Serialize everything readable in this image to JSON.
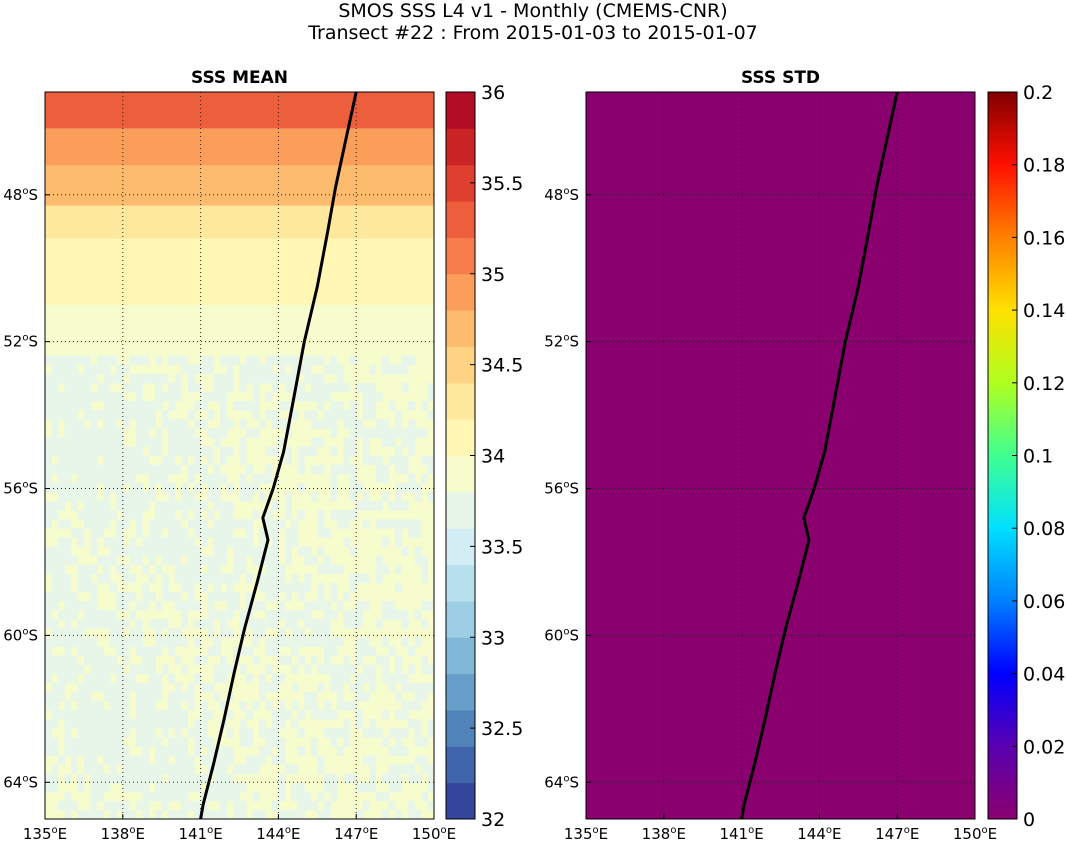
{
  "figure": {
    "title_line1": "SMOS SSS L4 v1 - Monthly (CMEMS-CNR)",
    "title_line2": "Transect #22 : From 2015-01-03 to 2015-01-07"
  },
  "chart_data": [
    {
      "type": "heatmap",
      "title": "SSS MEAN",
      "x_tick_labels": [
        "135°E",
        "138°E",
        "141°E",
        "144°E",
        "147°E",
        "150°E"
      ],
      "x_ticks_deg": [
        135,
        138,
        141,
        144,
        147,
        150
      ],
      "y_tick_labels": [
        "48°S",
        "52°S",
        "56°S",
        "60°S",
        "64°S"
      ],
      "y_ticks_deg": [
        -48,
        -52,
        -56,
        -60,
        -64
      ],
      "xlim": [
        135,
        150
      ],
      "ylim": [
        -65,
        -45.2
      ],
      "grid": true,
      "colorbar": {
        "colormap": "RdYlBu_r",
        "range": [
          32,
          36
        ],
        "levels": 20,
        "tick_values": [
          32,
          32.5,
          33,
          33.5,
          34,
          34.5,
          35,
          35.5,
          36
        ],
        "tick_labels": [
          "32",
          "32.5",
          "33",
          "33.5",
          "34",
          "34.5",
          "35",
          "35.5",
          "36"
        ]
      },
      "regions": [
        {
          "lat_range": [
            -46.2,
            -45.2
          ],
          "value": 35.3
        },
        {
          "lat_range": [
            -47.2,
            -46.2
          ],
          "value": 34.9
        },
        {
          "lat_range": [
            -48.3,
            -47.2
          ],
          "value": 34.6
        },
        {
          "lat_range": [
            -49.2,
            -48.3
          ],
          "value": 34.3
        },
        {
          "lat_range": [
            -51.0,
            -49.2
          ],
          "value": 34.1
        },
        {
          "lat_range": [
            -65.0,
            -51.0
          ],
          "value": 33.9
        },
        {
          "lat_range": [
            -65.0,
            -52.5
          ],
          "value": 33.7,
          "patchy": true
        }
      ],
      "transect": {
        "lon": [
          147.0,
          146.6,
          146.2,
          145.9,
          145.5,
          145.0,
          144.6,
          144.2,
          143.8,
          143.4,
          143.6,
          143.2,
          142.7,
          142.3,
          141.9,
          141.5,
          141.1,
          141.0
        ],
        "lat": [
          -45.2,
          -46.5,
          -47.8,
          -49.0,
          -50.5,
          -52.0,
          -53.5,
          -55.0,
          -56.0,
          -56.8,
          -57.4,
          -58.5,
          -59.8,
          -61.0,
          -62.3,
          -63.5,
          -64.6,
          -65.0
        ],
        "color": "#000000"
      }
    },
    {
      "type": "heatmap",
      "title": "SSS STD",
      "x_tick_labels": [
        "135°E",
        "138°E",
        "141°E",
        "144°E",
        "147°E",
        "150°E"
      ],
      "x_ticks_deg": [
        135,
        138,
        141,
        144,
        147,
        150
      ],
      "y_tick_labels": [
        "48°S",
        "52°S",
        "56°S",
        "60°S",
        "64°S"
      ],
      "y_ticks_deg": [
        -48,
        -52,
        -56,
        -60,
        -64
      ],
      "xlim": [
        135,
        150
      ],
      "ylim": [
        -65,
        -45.2
      ],
      "grid": true,
      "uniform_value": 0,
      "colorbar": {
        "colormap": "jet",
        "range": [
          0,
          0.2
        ],
        "tick_values": [
          0,
          0.02,
          0.04,
          0.06,
          0.08,
          0.1,
          0.12,
          0.14,
          0.16,
          0.18,
          0.2
        ],
        "tick_labels": [
          "0",
          "0.02",
          "0.04",
          "0.06",
          "0.08",
          "0.1",
          "0.12",
          "0.14",
          "0.16",
          "0.18",
          "0.2"
        ]
      },
      "transect": {
        "lon": [
          147.0,
          146.6,
          146.2,
          145.9,
          145.5,
          145.0,
          144.6,
          144.2,
          143.8,
          143.4,
          143.6,
          143.2,
          142.7,
          142.3,
          141.9,
          141.5,
          141.1,
          141.0
        ],
        "lat": [
          -45.2,
          -46.5,
          -47.8,
          -49.0,
          -50.5,
          -52.0,
          -53.5,
          -55.0,
          -56.0,
          -56.8,
          -57.4,
          -58.5,
          -59.8,
          -61.0,
          -62.3,
          -63.5,
          -64.6,
          -65.0
        ],
        "color": "#000000"
      }
    }
  ]
}
